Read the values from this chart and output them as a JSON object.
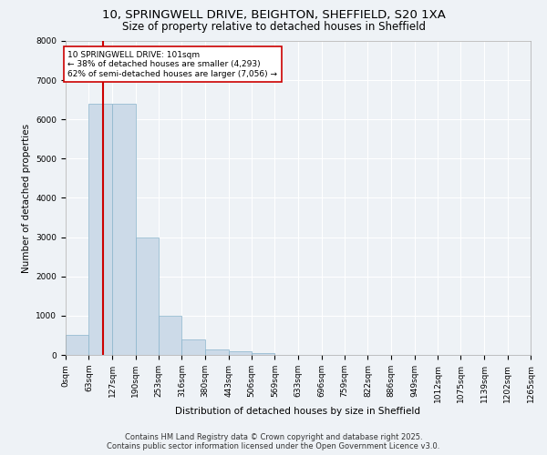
{
  "title_line1": "10, SPRINGWELL DRIVE, BEIGHTON, SHEFFIELD, S20 1XA",
  "title_line2": "Size of property relative to detached houses in Sheffield",
  "xlabel": "Distribution of detached houses by size in Sheffield",
  "ylabel": "Number of detached properties",
  "bin_edges": [
    0,
    63,
    127,
    190,
    253,
    316,
    380,
    443,
    506,
    569,
    633,
    696,
    759,
    822,
    886,
    949,
    1012,
    1075,
    1139,
    1202,
    1265
  ],
  "bar_heights": [
    500,
    6400,
    6400,
    3000,
    1000,
    400,
    150,
    100,
    50,
    10,
    5,
    3,
    2,
    1,
    1,
    0,
    0,
    0,
    0,
    0
  ],
  "bar_color": "#ccdae8",
  "bar_edge_color": "#8ab4cc",
  "vline_color": "#cc0000",
  "vline_x": 101,
  "annotation_text": "10 SPRINGWELL DRIVE: 101sqm\n← 38% of detached houses are smaller (4,293)\n62% of semi-detached houses are larger (7,056) →",
  "annotation_box_color": "#ffffff",
  "annotation_box_edge_color": "#cc0000",
  "ylim": [
    0,
    8000
  ],
  "yticks": [
    0,
    1000,
    2000,
    3000,
    4000,
    5000,
    6000,
    7000,
    8000
  ],
  "footer_line1": "Contains HM Land Registry data © Crown copyright and database right 2025.",
  "footer_line2": "Contains public sector information licensed under the Open Government Licence v3.0.",
  "background_color": "#eef2f6",
  "plot_bg_color": "#eef2f6",
  "grid_color": "#ffffff",
  "title_fontsize": 9.5,
  "subtitle_fontsize": 8.5,
  "axis_label_fontsize": 7.5,
  "tick_fontsize": 6.5,
  "annotation_fontsize": 6.5,
  "footer_fontsize": 6.0
}
